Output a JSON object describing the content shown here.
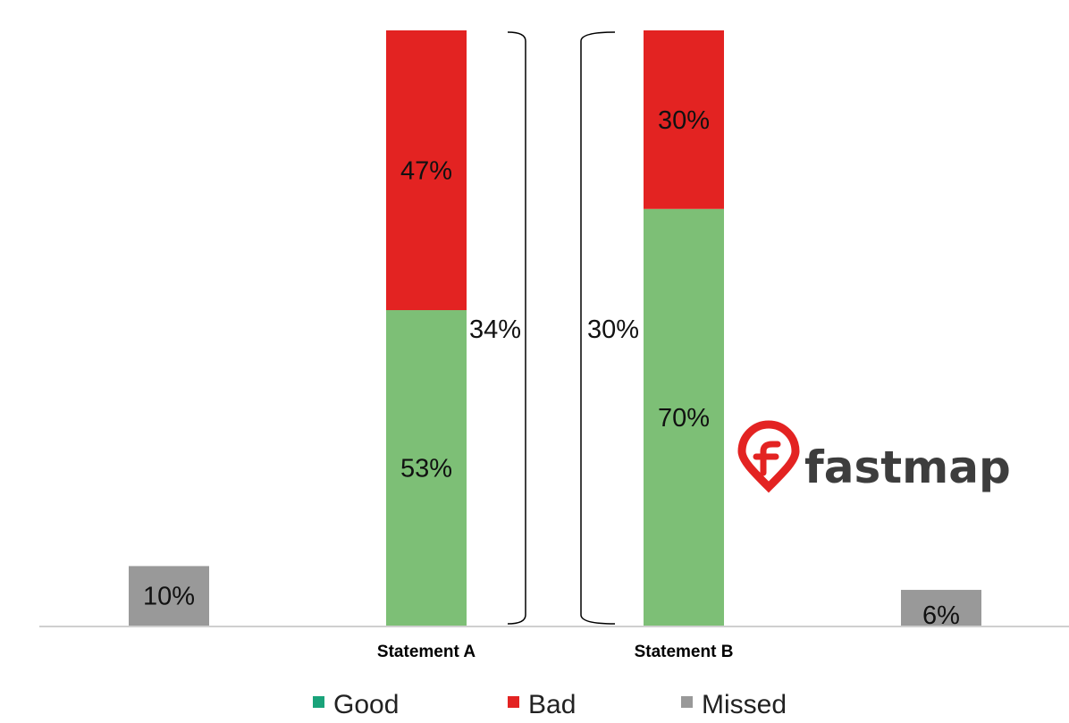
{
  "chart_data": {
    "type": "bar",
    "stacked": true,
    "categories": [
      "Statement A",
      "Statement B"
    ],
    "series": [
      {
        "name": "Good",
        "color": "#7dbf76",
        "values": [
          53,
          70
        ],
        "labels": [
          "53%",
          "70%"
        ]
      },
      {
        "name": "Bad",
        "color": "#e32322",
        "values": [
          47,
          30
        ],
        "labels": [
          "47%",
          "30%"
        ]
      },
      {
        "name": "Missed",
        "color": "#999999",
        "values": [
          10,
          6
        ],
        "labels": [
          "10%",
          "6%"
        ]
      }
    ],
    "brackets": [
      {
        "category": "Statement A",
        "label": "34%",
        "side": "right"
      },
      {
        "category": "Statement B",
        "label": "30%",
        "side": "left"
      }
    ],
    "legend": {
      "position": "bottom",
      "items": [
        "Good",
        "Bad",
        "Missed"
      ]
    },
    "grid": false
  },
  "legend_colors": {
    "Good": "#1aa37a",
    "Bad": "#e32322",
    "Missed": "#999999"
  },
  "logo": {
    "text": "fastmap",
    "color": "#3d3d3d",
    "accent": "#e32322"
  }
}
